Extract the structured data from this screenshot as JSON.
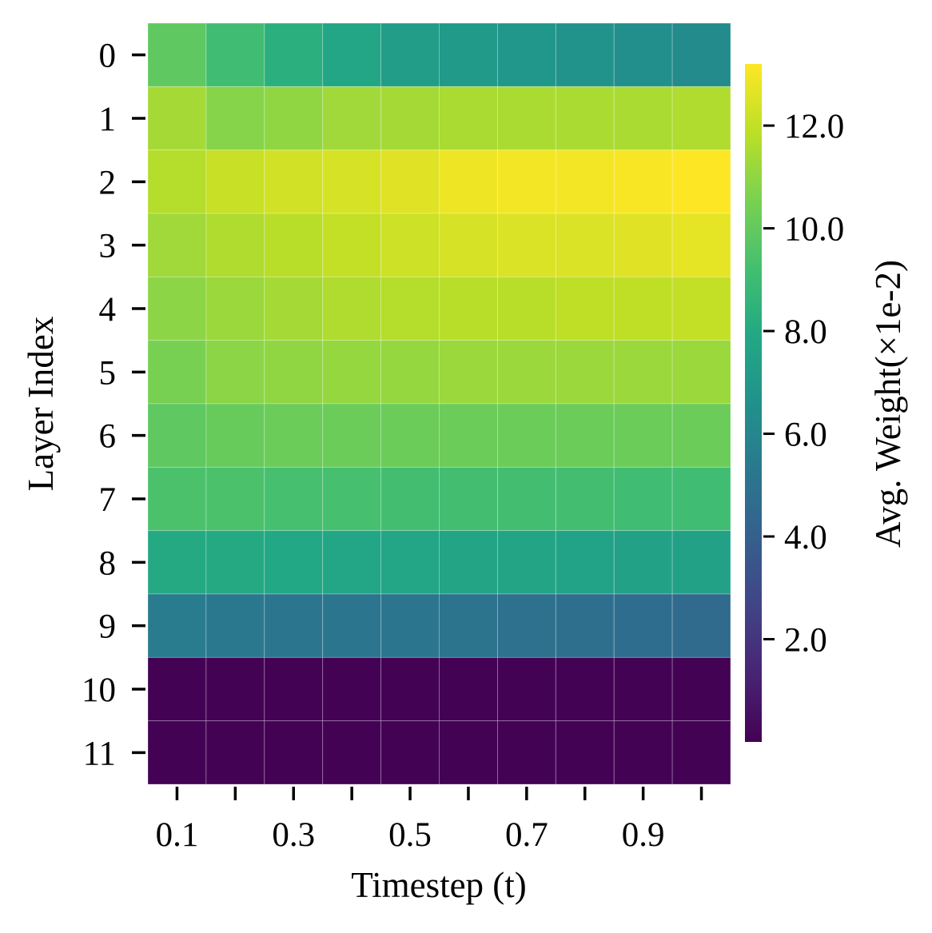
{
  "chart_data": {
    "type": "heatmap",
    "xlabel": "Timestep (t)",
    "ylabel": "Layer Index",
    "x_tick_labels": [
      "0.1",
      "0.3",
      "0.5",
      "0.7",
      "0.9"
    ],
    "x_tick_columns": [
      1,
      3,
      5,
      7,
      9
    ],
    "y_categories": [
      "0",
      "1",
      "2",
      "3",
      "4",
      "5",
      "6",
      "7",
      "8",
      "9",
      "10",
      "11"
    ],
    "colormap": "viridis",
    "colorbar": {
      "label": "Avg. Weight(×1e-2)",
      "min": 0.0,
      "max": 13.2,
      "ticks": [
        "2.0",
        "4.0",
        "6.0",
        "8.0",
        "10.0",
        "12.0"
      ],
      "tick_values": [
        2,
        4,
        6,
        8,
        10,
        12
      ]
    },
    "values": [
      [
        9.9,
        9.1,
        8.3,
        7.8,
        7.3,
        7.1,
        6.9,
        6.7,
        6.5,
        6.3
      ],
      [
        11.4,
        10.8,
        11.0,
        11.3,
        11.4,
        11.5,
        11.5,
        11.5,
        11.5,
        11.6
      ],
      [
        11.7,
        12.1,
        12.3,
        12.4,
        12.6,
        12.9,
        13.0,
        13.0,
        13.1,
        13.2
      ],
      [
        11.3,
        11.6,
        11.8,
        12.0,
        12.2,
        12.4,
        12.5,
        12.5,
        12.6,
        12.7
      ],
      [
        10.9,
        11.2,
        11.4,
        11.6,
        11.7,
        11.8,
        11.8,
        11.9,
        11.9,
        12.0
      ],
      [
        10.5,
        10.9,
        11.0,
        11.1,
        11.1,
        11.2,
        11.2,
        11.2,
        11.2,
        11.2
      ],
      [
        9.9,
        10.1,
        10.2,
        10.2,
        10.2,
        10.2,
        10.2,
        10.2,
        10.2,
        10.2
      ],
      [
        9.4,
        9.4,
        9.3,
        9.3,
        9.2,
        9.2,
        9.2,
        9.2,
        9.1,
        9.1
      ],
      [
        8.0,
        8.0,
        7.9,
        7.8,
        7.8,
        7.7,
        7.7,
        7.6,
        7.5,
        7.5
      ],
      [
        5.5,
        5.3,
        5.2,
        5.1,
        5.1,
        5.0,
        4.9,
        4.8,
        4.7,
        4.6
      ],
      [
        0.05,
        0.05,
        0.05,
        0.05,
        0.05,
        0.05,
        0.05,
        0.05,
        0.05,
        0.05
      ],
      [
        0.05,
        0.05,
        0.05,
        0.05,
        0.05,
        0.05,
        0.05,
        0.05,
        0.05,
        0.05
      ]
    ]
  }
}
